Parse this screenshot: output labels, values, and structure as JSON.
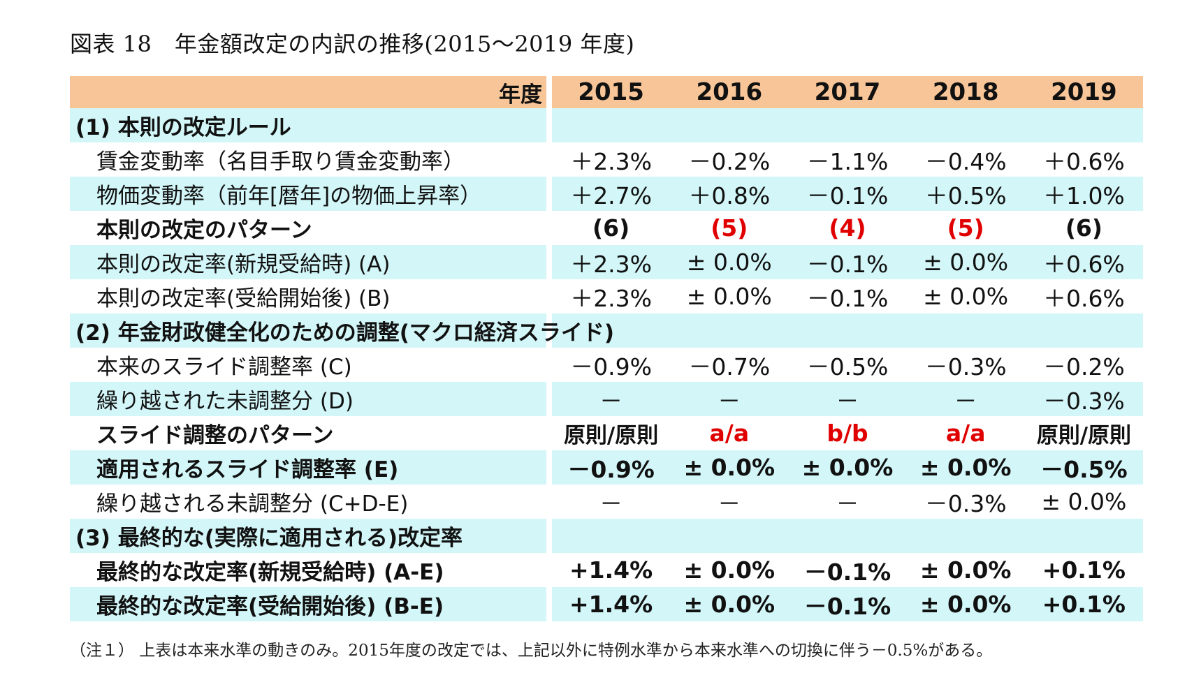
{
  "title": "図表 18　年金額改定の内訳の推移(2015～2019 年度)",
  "header": {
    "label": "年度",
    "years": [
      "2015",
      "2016",
      "2017",
      "2018",
      "2019"
    ]
  },
  "rows": [
    {
      "label": "(1) 本則の改定ルール",
      "values": [
        "",
        "",
        "",
        "",
        ""
      ]
    },
    {
      "label": "賃金変動率（名目手取り賃金変動率）",
      "values": [
        "＋2.3%",
        "－0.2%",
        "－1.1%",
        "－0.4%",
        "＋0.6%"
      ]
    },
    {
      "label": "物価変動率（前年[暦年]の物価上昇率）",
      "values": [
        "＋2.7%",
        "＋0.8%",
        "－0.1%",
        "＋0.5%",
        "＋1.0%"
      ]
    },
    {
      "label": "本則の改定のパターン",
      "values": [
        "(6)",
        "(5)",
        "(4)",
        "(5)",
        "(6)"
      ]
    },
    {
      "label": "本則の改定率(新規受給時) (A)",
      "values": [
        "＋2.3%",
        "± 0.0%",
        "－0.1%",
        "± 0.0%",
        "＋0.6%"
      ]
    },
    {
      "label": "本則の改定率(受給開始後) (B)",
      "values": [
        "＋2.3%",
        "± 0.0%",
        "－0.1%",
        "± 0.0%",
        "＋0.6%"
      ]
    },
    {
      "label": "(2) 年金財政健全化のための調整(マクロ経済スライド)",
      "values": [
        "",
        "",
        "",
        "",
        ""
      ]
    },
    {
      "label": "本来のスライド調整率 (C)",
      "values": [
        "－0.9%",
        "－0.7%",
        "－0.5%",
        "－0.3%",
        "－0.2%"
      ]
    },
    {
      "label": "繰り越された未調整分 (D)",
      "values": [
        "－",
        "－",
        "－",
        "－",
        "－0.3%"
      ]
    },
    {
      "label": "スライド調整のパターン",
      "values": [
        "原則/原則",
        "a/a",
        "b/b",
        "a/a",
        "原則/原則"
      ]
    },
    {
      "label": "適用されるスライド調整率 (E)",
      "values": [
        "－0.9%",
        "± 0.0%",
        "± 0.0%",
        "± 0.0%",
        "－0.5%"
      ]
    },
    {
      "label": "繰り越される未調整分 (C+D-E)",
      "values": [
        "－",
        "－",
        "－",
        "－0.3%",
        "± 0.0%"
      ]
    },
    {
      "label": "(3) 最終的な(実際に適用される)改定率",
      "values": [
        "",
        "",
        "",
        "",
        ""
      ]
    },
    {
      "label": "最終的な改定率(新規受給時) (A-E)",
      "values": [
        "+1.4%",
        "± 0.0%",
        "－0.1%",
        "± 0.0%",
        "+0.1%"
      ]
    },
    {
      "label": "最終的な改定率(受給開始後) (B-E)",
      "values": [
        "+1.4%",
        "± 0.0%",
        "－0.1%",
        "± 0.0%",
        "+0.1%"
      ]
    }
  ],
  "note": "（注１） 上表は本来水準の動きのみ。2015年度の改定では、上記以外に特例水準から本来水準への切換に伴う－0.5%がある。",
  "colors": {
    "header_bg": "#f7c597",
    "band_bg": "#d3f6f8",
    "highlight_text": "#e00000"
  }
}
